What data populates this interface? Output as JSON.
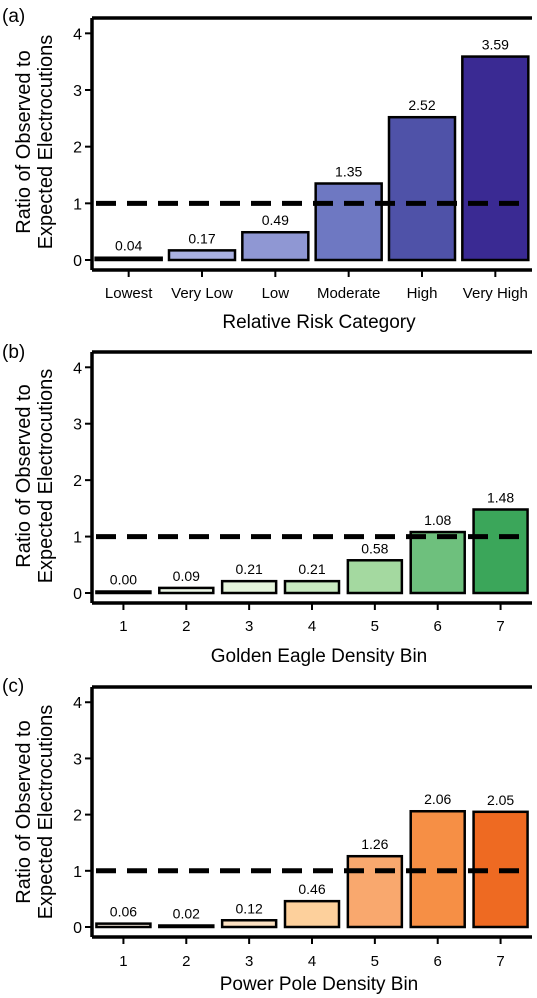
{
  "chart_data": [
    {
      "type": "bar",
      "panel_label": "(a)",
      "ylabel_lines": [
        "Ratio of Observed to",
        "Expected Electrocutions"
      ],
      "xlabel": "Relative Risk Category",
      "categories": [
        "Lowest",
        "Very Low",
        "Low",
        "Moderate",
        "High",
        "Very High"
      ],
      "values": [
        0.04,
        0.17,
        0.49,
        1.35,
        2.52,
        3.59
      ],
      "value_labels": [
        "0.04",
        "0.17",
        "0.49",
        "1.35",
        "2.52",
        "3.59"
      ],
      "colors": [
        "#161648",
        "#a9b0e0",
        "#8f97d3",
        "#6e78c2",
        "#4f52a8",
        "#3a2a93"
      ],
      "yticks": [
        "0",
        "1",
        "2",
        "3",
        "4"
      ],
      "ylim": [
        0,
        4.2
      ],
      "reference_line": 1
    },
    {
      "type": "bar",
      "panel_label": "(b)",
      "ylabel_lines": [
        "Ratio of Observed to",
        "Expected Electrocutions"
      ],
      "xlabel": "Golden Eagle Density Bin",
      "categories": [
        "1",
        "2",
        "3",
        "4",
        "5",
        "6",
        "7"
      ],
      "values": [
        0.0,
        0.09,
        0.21,
        0.21,
        0.58,
        1.08,
        1.48
      ],
      "value_labels": [
        "0.00",
        "0.09",
        "0.21",
        "0.21",
        "0.58",
        "1.08",
        "1.48"
      ],
      "colors": [
        "#f4faf2",
        "#eef8e9",
        "#e4f4dc",
        "#c8e9c1",
        "#a4d9a0",
        "#6ec07d",
        "#3ba65a"
      ],
      "yticks": [
        "0",
        "1",
        "2",
        "3",
        "4"
      ],
      "ylim": [
        0,
        4.2
      ],
      "reference_line": 1
    },
    {
      "type": "bar",
      "panel_label": "(c)",
      "ylabel_lines": [
        "Ratio of Observed to",
        "Expected Electrocutions"
      ],
      "xlabel": "Power Pole Density Bin",
      "categories": [
        "1",
        "2",
        "3",
        "4",
        "5",
        "6",
        "7"
      ],
      "values": [
        0.06,
        0.02,
        0.12,
        0.46,
        1.26,
        2.06,
        2.05
      ],
      "value_labels": [
        "0.06",
        "0.02",
        "0.12",
        "0.46",
        "1.26",
        "2.06",
        "2.05"
      ],
      "colors": [
        "#fff3e6",
        "#ffecd8",
        "#fde2c3",
        "#fdd09c",
        "#f9a86e",
        "#f68f45",
        "#ee6a22"
      ],
      "yticks": [
        "0",
        "1",
        "2",
        "3",
        "4"
      ],
      "ylim": [
        0,
        4.2
      ],
      "reference_line": 1
    }
  ]
}
